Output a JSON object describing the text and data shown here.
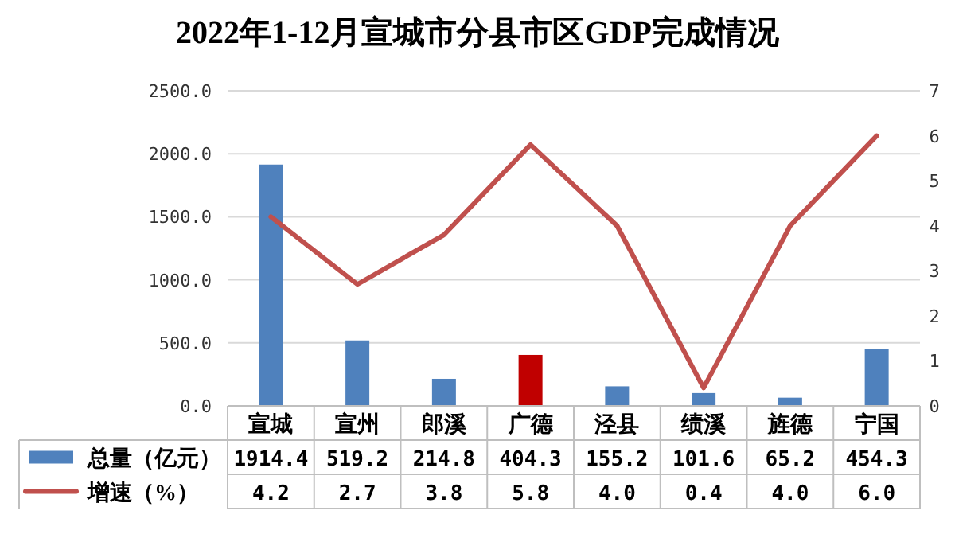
{
  "chart_data": {
    "type": "bar",
    "title": "2022年1-12月宣城市分县市区GDP完成情况",
    "categories": [
      "宣城",
      "宣州",
      "郎溪",
      "广德",
      "泾县",
      "绩溪",
      "旌德",
      "宁国"
    ],
    "series": [
      {
        "name": "总量（亿元）",
        "color": "#4f81bd",
        "value_labels": [
          "1914.4",
          "519.2",
          "214.8",
          "404.3",
          "155.2",
          "101.6",
          "65.2",
          "454.3"
        ],
        "colors": [
          "#4f81bd",
          "#4f81bd",
          "#4f81bd",
          "#c00000",
          "#4f81bd",
          "#4f81bd",
          "#4f81bd",
          "#4f81bd"
        ],
        "values": [
          1914.4,
          519.2,
          214.8,
          404.3,
          155.2,
          101.6,
          65.2,
          454.3
        ]
      },
      {
        "name": "增速（%）",
        "type": "line",
        "axis": "y2",
        "color": "#c0504d",
        "value_labels": [
          "4.2",
          "2.7",
          "3.8",
          "5.8",
          "4.0",
          "0.4",
          "4.0",
          "6.0"
        ],
        "values": [
          4.2,
          2.7,
          3.8,
          5.8,
          4.0,
          0.4,
          4.0,
          6.0
        ]
      }
    ],
    "ylim": [
      0,
      2500
    ],
    "yticks": [
      {
        "value": 0,
        "label": "0.0"
      },
      {
        "value": 500,
        "label": "500.0"
      },
      {
        "value": 1000,
        "label": "1000.0"
      },
      {
        "value": 1500,
        "label": "1500.0"
      },
      {
        "value": 2000,
        "label": "2000.0"
      },
      {
        "value": 2500,
        "label": "2500.0"
      }
    ],
    "y2lim": [
      0,
      7
    ],
    "y2ticks": [
      0,
      1,
      2,
      3,
      4,
      5,
      6,
      7
    ],
    "grid": "y",
    "legend": "bottom"
  }
}
